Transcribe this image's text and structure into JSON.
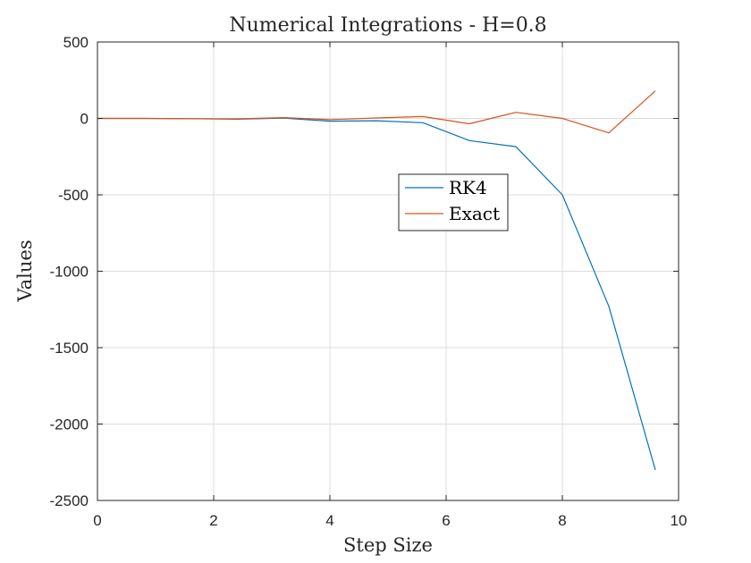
{
  "chart_data": {
    "type": "line",
    "title": "Numerical Integrations - H=0.8",
    "xlabel": "Step Size",
    "ylabel": "Values",
    "xlim": [
      0,
      10
    ],
    "ylim": [
      -2500,
      500
    ],
    "xticks": [
      0,
      2,
      4,
      6,
      8,
      10
    ],
    "yticks": [
      500,
      0,
      -500,
      -1000,
      -1500,
      -2000,
      -2500
    ],
    "xtick_labels": [
      "0",
      "2",
      "4",
      "6",
      "8",
      "10"
    ],
    "ytick_labels": [
      "500",
      "0",
      "-500",
      "-1000",
      "-1500",
      "-2000",
      "-2500"
    ],
    "grid": true,
    "legend_position": "center-right",
    "series": [
      {
        "name": "RK4",
        "color": "#0072BD",
        "x": [
          0,
          0.8,
          1.6,
          2.4,
          3.2,
          4.0,
          4.8,
          5.6,
          6.4,
          7.2,
          8.0,
          8.8,
          9.6
        ],
        "y": [
          0,
          0,
          -2,
          -5,
          2,
          -18,
          -15,
          -28,
          -145,
          -185,
          -500,
          -1230,
          -2300
        ]
      },
      {
        "name": "Exact",
        "color": "#D95319",
        "x": [
          0,
          0.8,
          1.6,
          2.4,
          3.2,
          4.0,
          4.8,
          5.6,
          6.4,
          7.2,
          8.0,
          8.8,
          9.6
        ],
        "y": [
          0,
          0,
          -2,
          -3,
          5,
          -8,
          3,
          12,
          -35,
          40,
          0,
          -95,
          180
        ]
      }
    ]
  }
}
